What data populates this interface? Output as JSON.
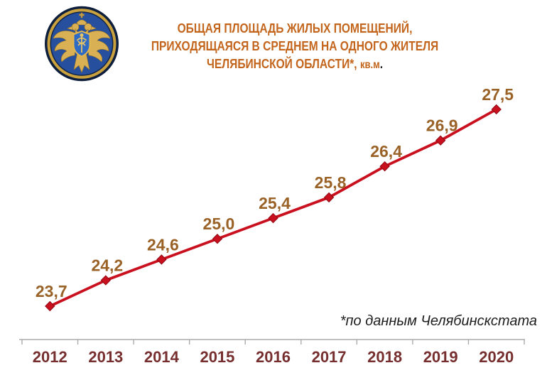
{
  "header": {
    "logo_name": "rosstat-emblem",
    "title_line1": "ОБЩАЯ ПЛОЩАДЬ ЖИЛЫХ ПОМЕЩЕНИЙ,",
    "title_line2": "ПРИХОДЯЩАЯСЯ В СРЕДНЕМ НА ОДНОГО ЖИТЕЛЯ",
    "title_line3_main": "ЧЕЛЯБИНСКОЙ ОБЛАСТИ*, ",
    "title_line3_unit": "кв.м",
    "title_line3_period": "."
  },
  "footnote": "*по данным  Челябинскстата",
  "colors": {
    "title": "#c3651c",
    "series": "#c9101e",
    "marker_stroke": "#8f0a14",
    "value_labels": "#9a6227",
    "year_labels": "#772e2e",
    "axis": "#ababab",
    "logo_field_blue": "#26509e",
    "logo_gold": "#d9b054",
    "logo_navy": "#0d1f3c",
    "logo_shield_blue": "#2f6bc4"
  },
  "chart_data": {
    "type": "line",
    "title": "Общая площадь жилых помещений, приходящаяся в среднем на одного жителя Челябинской области, кв.м",
    "categories": [
      "2012",
      "2013",
      "2014",
      "2015",
      "2016",
      "2017",
      "2018",
      "2019",
      "2020"
    ],
    "values": [
      23.7,
      24.2,
      24.6,
      25.0,
      25.4,
      25.8,
      26.4,
      26.9,
      27.5
    ],
    "point_labels": [
      "23,7",
      "24,2",
      "24,6",
      "25,0",
      "25,4",
      "25,8",
      "26,4",
      "26,9",
      "27,5"
    ],
    "xlabel": "",
    "ylabel": "",
    "ylim": [
      23.05,
      27.9
    ],
    "grid": false,
    "legend": false,
    "marker": "diamond",
    "value_axis_visible": false
  }
}
